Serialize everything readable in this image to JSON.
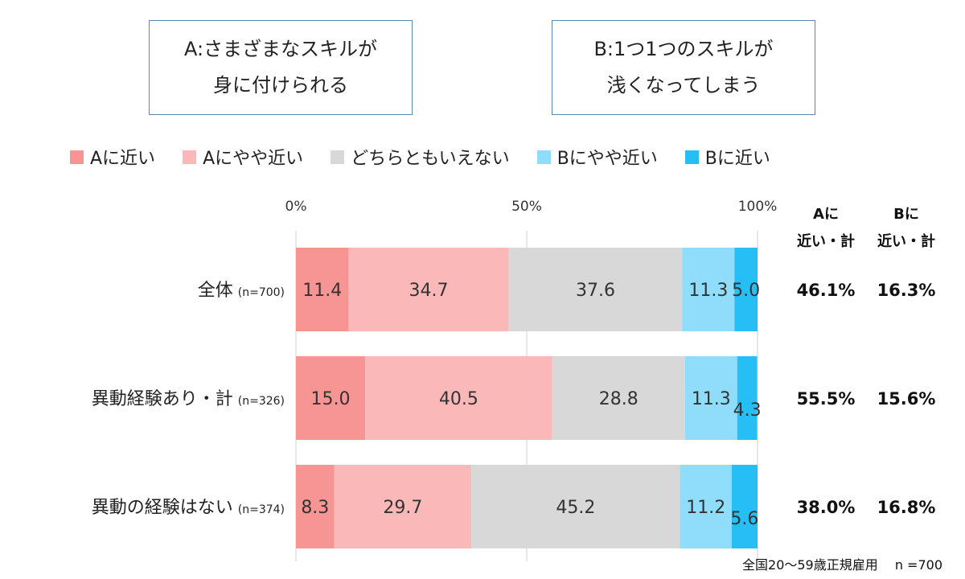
{
  "box_a": {
    "line1": "A:さまざまなスキルが",
    "line2": "身に付けられる"
  },
  "box_b": {
    "line1": "B:1つ1つのスキルが",
    "line2": "浅くなってしまう"
  },
  "chart_data": {
    "type": "bar",
    "orientation": "horizontal",
    "stacked": true,
    "x_axis": {
      "range": [
        0,
        100
      ],
      "ticks": [
        "0%",
        "50%",
        "100%"
      ],
      "tick_values": [
        0,
        50,
        100
      ]
    },
    "grid": true,
    "legend_position": "top",
    "categories": [
      {
        "label": "全体",
        "n": "(n=700)"
      },
      {
        "label": "異動経験あり・計",
        "n": "(n=326)"
      },
      {
        "label": "異動の経験はない",
        "n": "(n=374)"
      }
    ],
    "series": [
      {
        "name": "Aに近い",
        "color": "#f79494",
        "values": [
          11.4,
          15.0,
          8.3
        ],
        "labels": [
          "11.4",
          "15.0",
          "8.3"
        ]
      },
      {
        "name": "Aにやや近い",
        "color": "#fbb8b8",
        "values": [
          34.7,
          40.5,
          29.7
        ],
        "labels": [
          "34.7",
          "40.5",
          "29.7"
        ]
      },
      {
        "name": "どちらともいえない",
        "color": "#d8d8d8",
        "values": [
          37.6,
          28.8,
          45.2
        ],
        "labels": [
          "37.6",
          "28.8",
          "45.2"
        ]
      },
      {
        "name": "Bにやや近い",
        "color": "#8fddfb",
        "values": [
          11.3,
          11.3,
          11.2
        ],
        "labels": [
          "11.3",
          "11.3",
          "11.2"
        ]
      },
      {
        "name": "Bに近い",
        "color": "#26bff5",
        "values": [
          5.0,
          4.3,
          5.6
        ],
        "labels": [
          "5.0",
          "4.3",
          "5.6"
        ]
      }
    ],
    "summary_columns": [
      {
        "header_line1": "Aに",
        "header_line2": "近い・計",
        "values": [
          "46.1%",
          "55.5%",
          "38.0%"
        ]
      },
      {
        "header_line1": "Bに",
        "header_line2": "近い・計",
        "values": [
          "16.3%",
          "15.6%",
          "16.8%"
        ]
      }
    ]
  },
  "footnote": "全国20～59歳正規雇用　 n =700"
}
